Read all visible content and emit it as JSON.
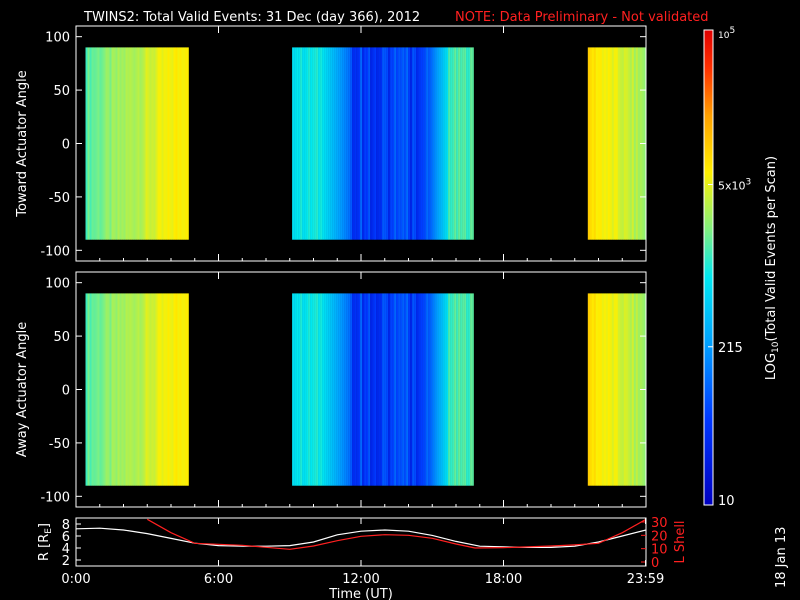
{
  "header": {
    "title": "TWINS2: Total Valid Events: 31 Dec (day 366), 2012",
    "note": "NOTE: Data Preliminary - Not validated"
  },
  "stamp": "18 Jan 13",
  "colors": {
    "accent_note": "#ff2020",
    "r_line": "#ffffff",
    "lshell_line": "#ff2020"
  },
  "chart_data": [
    {
      "type": "heatmap",
      "panel": "top",
      "ylabel": "Toward Actuator Angle",
      "ylim": [
        -110,
        110
      ],
      "y_ticks": [
        "100",
        "50",
        "0",
        "-50",
        "-100"
      ],
      "y_tick_values": [
        100,
        50,
        0,
        -50,
        -100
      ],
      "data_y_range": [
        -90,
        90
      ],
      "xlim_hours": [
        0,
        24
      ],
      "segments": [
        {
          "start_h": 0.4,
          "end_h": 4.75,
          "level_start": 0.55,
          "level_end": 0.72
        },
        {
          "start_h": 9.1,
          "end_h": 16.75,
          "level_start": 0.48,
          "level_end": 0.54,
          "blue_core": [
            11.5,
            14.8
          ]
        },
        {
          "start_h": 21.55,
          "end_h": 24.0,
          "level_start": 0.73,
          "level_end": 0.6
        }
      ]
    },
    {
      "type": "heatmap",
      "panel": "middle",
      "ylabel": "Away Actuator Angle",
      "ylim": [
        -110,
        110
      ],
      "y_ticks": [
        "100",
        "50",
        "0",
        "-50",
        "-100"
      ],
      "y_tick_values": [
        100,
        50,
        0,
        -50,
        -100
      ],
      "data_y_range": [
        -90,
        90
      ],
      "xlim_hours": [
        0,
        24
      ],
      "segments": [
        {
          "start_h": 0.4,
          "end_h": 4.75,
          "level_start": 0.55,
          "level_end": 0.72
        },
        {
          "start_h": 9.1,
          "end_h": 16.75,
          "level_start": 0.48,
          "level_end": 0.54,
          "blue_core": [
            11.5,
            14.8
          ]
        },
        {
          "start_h": 21.55,
          "end_h": 24.0,
          "level_start": 0.73,
          "level_end": 0.6
        }
      ]
    },
    {
      "type": "line",
      "panel": "bottom",
      "ylabel": "R [R",
      "ylabel_sub": "E",
      "ylabel_close": "]",
      "ylim": [
        1,
        9
      ],
      "y_ticks": [
        "8",
        "6",
        "4",
        "2"
      ],
      "y_tick_values": [
        8,
        6,
        4,
        2
      ],
      "y2label": "L Shell",
      "y2lim": [
        0,
        30
      ],
      "y2_ticks": [
        "30",
        "20",
        "10",
        "0"
      ],
      "y2_tick_values": [
        30,
        20,
        10,
        0
      ],
      "xlabel": "Time (UT)",
      "x_ticks": [
        "0:00",
        "6:00",
        "12:00",
        "18:00",
        "23:59"
      ],
      "x_tick_values": [
        0,
        6,
        12,
        18,
        23.98
      ],
      "series": [
        {
          "color": "#ffffff",
          "axis": "left",
          "x": [
            0,
            1,
            2,
            3,
            4,
            5,
            6,
            7,
            8,
            9,
            10,
            11,
            12,
            13,
            14,
            15,
            16,
            17,
            18,
            19,
            20,
            21,
            22,
            23,
            24
          ],
          "y": [
            7.2,
            7.3,
            7.0,
            6.4,
            5.6,
            4.8,
            4.4,
            4.3,
            4.3,
            4.4,
            5.0,
            6.2,
            6.8,
            7.0,
            6.8,
            6.1,
            5.1,
            4.3,
            4.2,
            4.1,
            4.1,
            4.3,
            5.0,
            6.0,
            7.0
          ]
        },
        {
          "color": "#ff2020",
          "axis": "right",
          "x": [
            3.0,
            4.0,
            5.0,
            6.0,
            7.0,
            8.0,
            9.0,
            10.0,
            11.0,
            12.0,
            13.0,
            14.0,
            15.0,
            16.0,
            16.8,
            18.0,
            19.0,
            20.0,
            21.0,
            22.0,
            23.0,
            24.0
          ],
          "y": [
            32,
            22,
            14,
            13.3,
            12.5,
            11.0,
            9.5,
            12.0,
            16.0,
            19.3,
            20.5,
            20.0,
            17.8,
            13.5,
            10.5,
            10.8,
            11.3,
            12.0,
            12.8,
            14.0,
            22.0,
            32.0
          ]
        }
      ]
    },
    {
      "type": "heatmap",
      "panel": "colorbar",
      "ylabel": "LOG",
      "ylabel_sub": "10",
      "ylabel_tail": "(Total Valid Events per Scan)",
      "ticks": [
        {
          "label": "10",
          "sup": "5",
          "value": 100000
        },
        {
          "label": "5x10",
          "sup": "3",
          "value": 5000
        },
        {
          "label": "215",
          "sup": "",
          "value": 215
        },
        {
          "label": "10",
          "sup": "",
          "value": 10
        }
      ]
    }
  ]
}
